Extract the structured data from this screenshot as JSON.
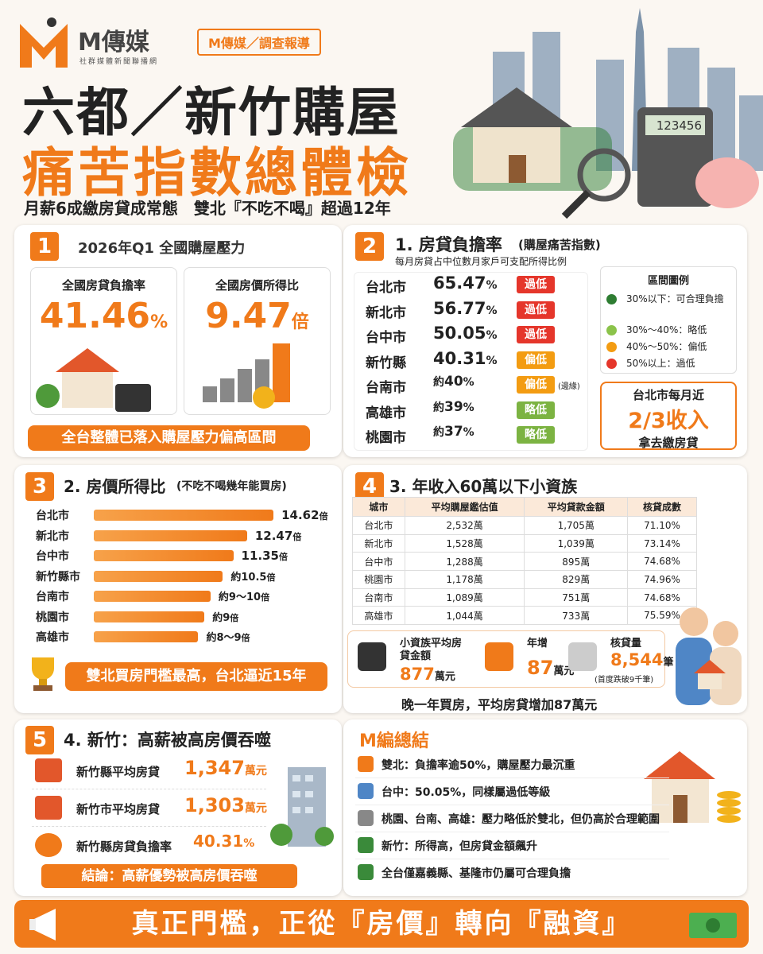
{
  "header": {
    "brand": "M傳媒",
    "brand_sub": "社群媒體新聞聯播網",
    "tag": "M傳媒／調查報導",
    "title_line1": "六都／新竹購屋",
    "title_line2": "痛苦指數總體檢",
    "subtitle": "月薪6成繳房貸成常態　雙北『不吃不喝』超過12年",
    "calculator_display": "123456"
  },
  "section1": {
    "number": "1",
    "title": "2026年Q1 全國購屋壓力",
    "cards": [
      {
        "label": "全國房貸負擔率",
        "value": "41.46",
        "unit": "%"
      },
      {
        "label": "全國房價所得比",
        "value": "9.47",
        "unit": "倍"
      }
    ],
    "banner": "全台整體已落入購屋壓力偏高區間"
  },
  "section2": {
    "number": "2",
    "title": "1. 房貸負擔率",
    "title_note": "(購屋痛苦指數)",
    "description": "每月房貸占中位數月家戶可支配所得比例",
    "rows": [
      {
        "city": "台北市",
        "value": "65.47",
        "unit": "%",
        "level": "過低",
        "level_color": "#e5362b"
      },
      {
        "city": "新北市",
        "value": "56.77",
        "unit": "%",
        "level": "過低",
        "level_color": "#e5362b"
      },
      {
        "city": "台中市",
        "value": "50.05",
        "unit": "%",
        "level": "過低",
        "level_color": "#e5362b"
      },
      {
        "city": "新竹縣",
        "value": "40.31",
        "unit": "%",
        "level": "偏低",
        "level_color": "#f39c12"
      },
      {
        "city": "台南市",
        "prefix": "約",
        "value": "40",
        "unit": "%",
        "level": "偏低",
        "level_color": "#f39c12",
        "note": "(邊緣)"
      },
      {
        "city": "高雄市",
        "prefix": "約",
        "value": "39",
        "unit": "%",
        "level": "略低",
        "level_color": "#7cb342"
      },
      {
        "city": "桃園市",
        "prefix": "約",
        "value": "37",
        "unit": "%",
        "level": "略低",
        "level_color": "#7cb342"
      }
    ],
    "legend": {
      "title": "區間圖例",
      "items": [
        {
          "text": "30%以下：可合理負擔",
          "color": "#2e7d32"
        },
        {
          "text": "30%～40%：略低",
          "color": "#8bc34a"
        },
        {
          "text": "40%～50%：偏低",
          "color": "#f39c12"
        },
        {
          "text": "50%以上：過低",
          "color": "#e5362b"
        }
      ]
    },
    "callout": {
      "line1": "台北市每月近",
      "line2": "2/3收入",
      "line3": "拿去繳房貸"
    }
  },
  "section3": {
    "number": "3",
    "title": "2. 房價所得比",
    "title_note": "(不吃不喝幾年能買房)",
    "bar_max": 15,
    "bars": [
      {
        "city": "台北市",
        "value": 14.62,
        "value_label": "14.62",
        "unit": "倍"
      },
      {
        "city": "新北市",
        "value": 12.47,
        "value_label": "12.47",
        "unit": "倍"
      },
      {
        "city": "台中市",
        "value": 11.35,
        "value_label": "11.35",
        "unit": "倍"
      },
      {
        "city": "新竹縣市",
        "value": 10.5,
        "value_label": "約10.5",
        "unit": "倍"
      },
      {
        "city": "台南市",
        "value": 9.5,
        "value_label": "約9～10",
        "unit": "倍"
      },
      {
        "city": "桃園市",
        "value": 9,
        "value_label": "約9",
        "unit": "倍"
      },
      {
        "city": "高雄市",
        "value": 8.5,
        "value_label": "約8～9",
        "unit": "倍"
      }
    ],
    "banner": "雙北買房門檻最高，台北逼近15年"
  },
  "section4": {
    "number": "4",
    "title": "3. 年收入60萬以下小資族",
    "table": {
      "columns": [
        "城市",
        "平均購屋鑑估值",
        "平均貸款金額",
        "核貸成數"
      ],
      "rows": [
        [
          "台北市",
          "2,532萬",
          "1,705萬",
          "71.10%"
        ],
        [
          "新北市",
          "1,528萬",
          "1,039萬",
          "73.14%"
        ],
        [
          "台中市",
          "1,288萬",
          "895萬",
          "74.68%"
        ],
        [
          "桃園市",
          "1,178萬",
          "829萬",
          "74.96%"
        ],
        [
          "台南市",
          "1,089萬",
          "751萬",
          "74.68%"
        ],
        [
          "高雄市",
          "1,044萬",
          "733萬",
          "75.59%"
        ]
      ]
    },
    "stats": [
      {
        "label": "小資族平均房貸金額",
        "value": "877",
        "unit": "萬元"
      },
      {
        "label": "年增",
        "value": "87",
        "unit": "萬元"
      },
      {
        "label": "核貸量",
        "value": "8,544",
        "unit": "筆",
        "note": "(首度跌破9千筆)"
      }
    ],
    "footer": "晚一年買房，平均房貸增加87萬元"
  },
  "section5": {
    "number": "5",
    "title": "4. 新竹：高薪被高房價吞噬",
    "items": [
      {
        "label": "新竹縣平均房貸",
        "value": "1,347",
        "unit": "萬元"
      },
      {
        "label": "新竹市平均房貸",
        "value": "1,303",
        "unit": "萬元"
      },
      {
        "label": "新竹縣房貸負擔率",
        "value": "40.31",
        "unit": "%"
      }
    ],
    "conclusion": "結論：高薪優勢被高房價吞噬"
  },
  "summary": {
    "title": "M編總結",
    "items": [
      "雙北：負擔率逾50%，購屋壓力最沉重",
      "台中：50.05%，同樣屬過低等級",
      "桃園、台南、高雄：壓力略低於雙北，但仍高於合理範圍",
      "新竹：所得高，但房貸金額飆升",
      "全台僅嘉義縣、基隆市仍屬可合理負擔"
    ]
  },
  "footer": {
    "text": "真正門檻，正從『房價』轉向『融資』"
  }
}
